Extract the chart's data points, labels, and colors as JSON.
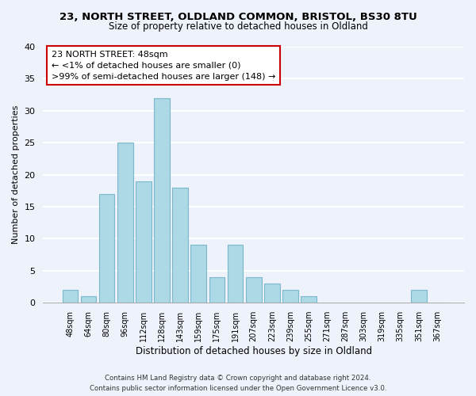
{
  "title1": "23, NORTH STREET, OLDLAND COMMON, BRISTOL, BS30 8TU",
  "title2": "Size of property relative to detached houses in Oldland",
  "xlabel": "Distribution of detached houses by size in Oldland",
  "ylabel": "Number of detached properties",
  "bar_labels": [
    "48sqm",
    "64sqm",
    "80sqm",
    "96sqm",
    "112sqm",
    "128sqm",
    "143sqm",
    "159sqm",
    "175sqm",
    "191sqm",
    "207sqm",
    "223sqm",
    "239sqm",
    "255sqm",
    "271sqm",
    "287sqm",
    "303sqm",
    "319sqm",
    "335sqm",
    "351sqm",
    "367sqm"
  ],
  "bar_values": [
    2,
    1,
    17,
    25,
    19,
    32,
    18,
    9,
    4,
    9,
    4,
    3,
    2,
    1,
    0,
    0,
    0,
    0,
    0,
    2,
    0
  ],
  "bar_color": "#add8e6",
  "bar_edge_color": "#7ab8cc",
  "ylim": [
    0,
    40
  ],
  "yticks": [
    0,
    5,
    10,
    15,
    20,
    25,
    30,
    35,
    40
  ],
  "annotation_box_text": "23 NORTH STREET: 48sqm\n← <1% of detached houses are smaller (0)\n>99% of semi-detached houses are larger (148) →",
  "footer_line1": "Contains HM Land Registry data © Crown copyright and database right 2024.",
  "footer_line2": "Contains public sector information licensed under the Open Government Licence v3.0.",
  "background_color": "#eef2fb",
  "grid_color": "#ffffff",
  "box_edge_color": "#cc0000"
}
